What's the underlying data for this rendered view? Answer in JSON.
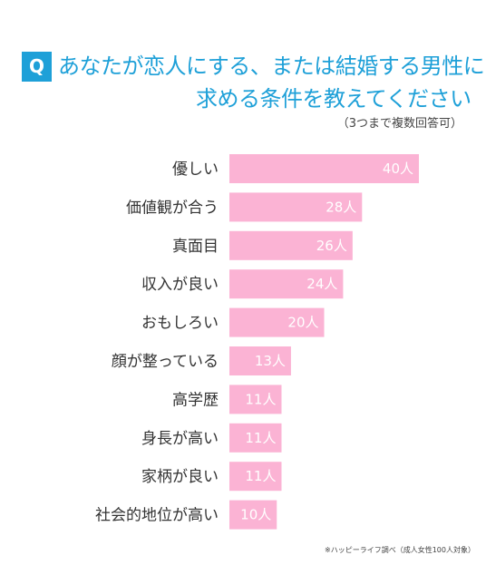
{
  "header": {
    "badge": "Q",
    "title_line1": "あなたが恋人にする、または結婚する男性に",
    "title_line2": "求める条件を教えてください",
    "subtitle": "（3つまで複数回答可）"
  },
  "footnote": "※ハッピーライフ調べ（成人女性100人対象）",
  "colors": {
    "accent": "#1ea0d8",
    "bar": "#fbb3d4"
  },
  "chart_data": {
    "type": "bar",
    "orientation": "horizontal",
    "title": "あなたが恋人にする、または結婚する男性に求める条件を教えてください",
    "subtitle": "（3つまで複数回答可）",
    "categories": [
      "優しい",
      "価値観が合う",
      "真面目",
      "収入が良い",
      "おもしろい",
      "顔が整っている",
      "高学歴",
      "身長が高い",
      "家柄が良い",
      "社会的地位が高い"
    ],
    "values": [
      40,
      28,
      26,
      24,
      20,
      13,
      11,
      11,
      11,
      10
    ],
    "value_labels": [
      "40人",
      "28人",
      "26人",
      "24人",
      "20人",
      "13人",
      "11人",
      "11人",
      "11人",
      "10人"
    ],
    "xlim": [
      0,
      40
    ],
    "grid": false,
    "legend": false
  }
}
